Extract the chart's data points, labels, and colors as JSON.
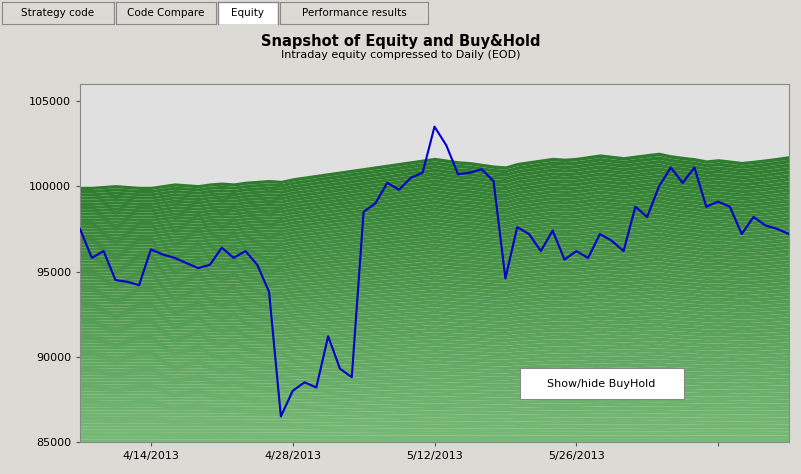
{
  "title": "Snapshot of Equity and Buy&Hold",
  "subtitle": "Intraday equity compressed to Daily (EOD)",
  "tab_labels": [
    "Strategy code",
    "Code Compare",
    "Equity",
    "Performance results"
  ],
  "active_tab": "Equity",
  "xlim_start": 0,
  "xlim_end": 60,
  "ylim": [
    85000,
    106000
  ],
  "yticks": [
    85000,
    90000,
    95000,
    100000,
    105000
  ],
  "xtick_positions": [
    6,
    18,
    30,
    42,
    54
  ],
  "xtick_labels": [
    "4/14/2013",
    "4/28/2013",
    "5/12/2013",
    "5/26/2013",
    ""
  ],
  "outer_bg": "#dcdad5",
  "plot_bg": "#e0e0e0",
  "fill_green_dark": "#2e7d2e",
  "fill_green_light": "#78bb78",
  "line_color": "#0000cc",
  "button_text": "Show/hide BuyHold",
  "equity_x": [
    0,
    1,
    2,
    3,
    4,
    5,
    6,
    7,
    8,
    9,
    10,
    11,
    12,
    13,
    14,
    15,
    16,
    17,
    18,
    19,
    20,
    21,
    22,
    23,
    24,
    25,
    26,
    27,
    28,
    29,
    30,
    31,
    32,
    33,
    34,
    35,
    36,
    37,
    38,
    39,
    40,
    41,
    42,
    43,
    44,
    45,
    46,
    47,
    48,
    49,
    50,
    51,
    52,
    53,
    54,
    55,
    56,
    57,
    58,
    59,
    60
  ],
  "equity_y": [
    97500,
    95800,
    96200,
    94500,
    94400,
    94200,
    96300,
    96000,
    95800,
    95500,
    95200,
    95400,
    96400,
    95800,
    96200,
    95400,
    93800,
    86500,
    88000,
    88500,
    88200,
    91200,
    89300,
    88800,
    98500,
    99000,
    100200,
    99800,
    100500,
    100800,
    103500,
    102400,
    100700,
    100800,
    101000,
    100300,
    94600,
    97600,
    97200,
    96200,
    97400,
    95700,
    96200,
    95800,
    97200,
    96800,
    96200,
    98800,
    98200,
    100000,
    101100,
    100200,
    101100,
    98800,
    99100,
    98800,
    97200,
    98200,
    97700,
    97500,
    97200
  ],
  "buyhold_x": [
    0,
    1,
    2,
    3,
    4,
    5,
    6,
    7,
    8,
    9,
    10,
    11,
    12,
    13,
    14,
    15,
    16,
    17,
    18,
    19,
    20,
    21,
    22,
    23,
    24,
    25,
    26,
    27,
    28,
    29,
    30,
    31,
    32,
    33,
    34,
    35,
    36,
    37,
    38,
    39,
    40,
    41,
    42,
    43,
    44,
    45,
    46,
    47,
    48,
    49,
    50,
    51,
    52,
    53,
    54,
    55,
    56,
    57,
    58,
    59,
    60
  ],
  "buyhold_y": [
    100000,
    100000,
    100050,
    100100,
    100050,
    100000,
    100000,
    100100,
    100200,
    100150,
    100100,
    100200,
    100250,
    100200,
    100300,
    100350,
    100400,
    100350,
    100500,
    100600,
    100700,
    100800,
    100900,
    101000,
    101100,
    101200,
    101300,
    101400,
    101500,
    101600,
    101700,
    101600,
    101500,
    101450,
    101350,
    101250,
    101200,
    101400,
    101500,
    101600,
    101700,
    101650,
    101700,
    101800,
    101900,
    101820,
    101740,
    101830,
    101920,
    102000,
    101850,
    101760,
    101680,
    101550,
    101620,
    101540,
    101460,
    101530,
    101610,
    101700,
    101800
  ]
}
